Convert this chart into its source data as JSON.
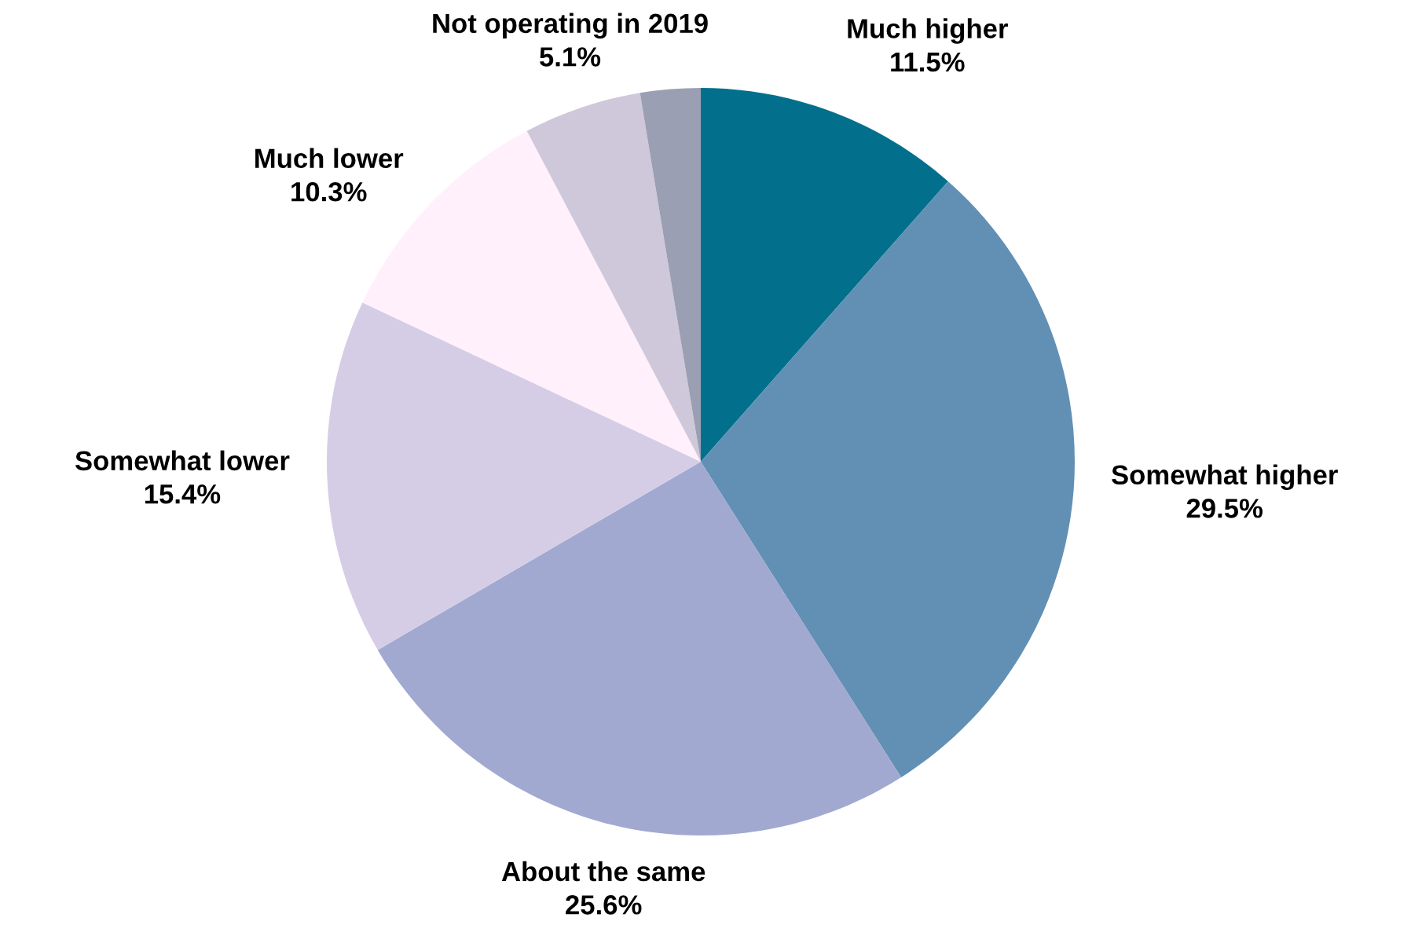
{
  "chart_data": {
    "type": "pie",
    "categories": [
      "Much higher",
      "Somewhat higher",
      "About the same",
      "Somewhat lower",
      "Much lower",
      "Not operating in 2019",
      null
    ],
    "values": [
      11.5,
      29.5,
      25.6,
      15.4,
      10.3,
      5.1,
      2.6
    ],
    "value_labels": [
      "11.5%",
      "29.5%",
      "25.6%",
      "15.4%",
      "10.3%",
      "5.1%",
      null
    ],
    "colors": [
      "#02708c",
      "#6290b4",
      "#a1a9d1",
      "#d5cde6",
      "#fff0fc",
      "#cfc8da",
      "#9b9fb3"
    ]
  }
}
